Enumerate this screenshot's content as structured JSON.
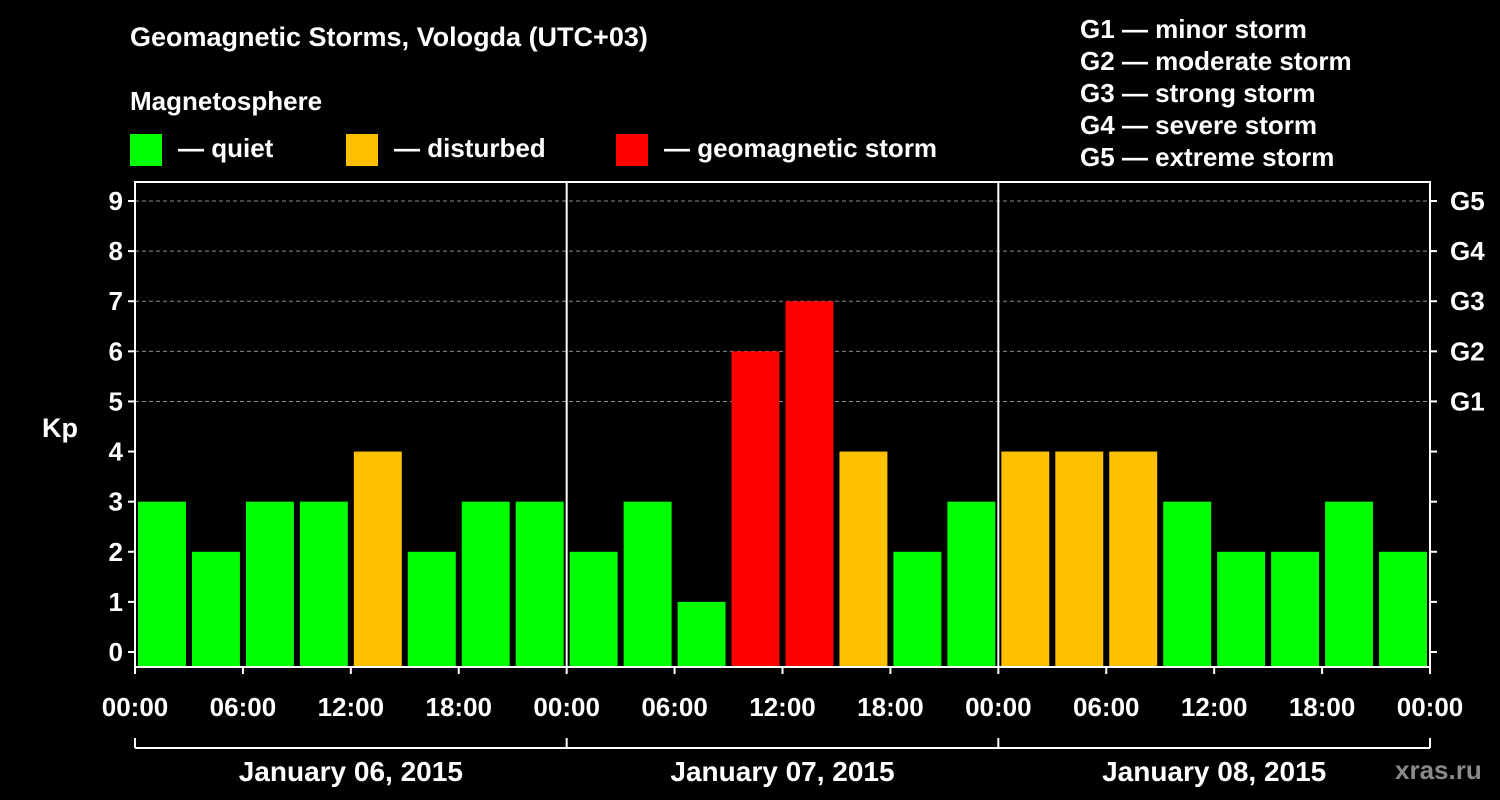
{
  "title": "Geomagnetic Storms, Vologda (UTC+03)",
  "subtitle": "Magnetosphere",
  "legend": [
    {
      "label": "— quiet",
      "color": "#00ff00"
    },
    {
      "label": "— disturbed",
      "color": "#ffc000"
    },
    {
      "label": "— geomagnetic storm",
      "color": "#ff0000"
    }
  ],
  "storm_scale": [
    "G1 — minor storm",
    "G2 — moderate storm",
    "G3 — strong storm",
    "G4 — severe storm",
    "G5 — extreme storm"
  ],
  "watermark": "xras.ru",
  "chart_data": {
    "type": "bar",
    "ylabel": "Kp",
    "ylim": [
      0,
      9
    ],
    "yticks": [
      0,
      1,
      2,
      3,
      4,
      5,
      6,
      7,
      8,
      9
    ],
    "right_ticks": [
      {
        "value": 5,
        "label": "G1"
      },
      {
        "value": 6,
        "label": "G2"
      },
      {
        "value": 7,
        "label": "G3"
      },
      {
        "value": 8,
        "label": "G4"
      },
      {
        "value": 9,
        "label": "G5"
      }
    ],
    "xtick_labels": [
      "00:00",
      "06:00",
      "12:00",
      "18:00",
      "00:00",
      "06:00",
      "12:00",
      "18:00",
      "00:00",
      "06:00",
      "12:00",
      "18:00",
      "00:00"
    ],
    "days": [
      "January 06, 2015",
      "January 07, 2015",
      "January 08, 2015"
    ],
    "bars_per_day": 8,
    "values": [
      3,
      2,
      3,
      3,
      4,
      2,
      3,
      3,
      2,
      3,
      1,
      6,
      7,
      4,
      2,
      3,
      4,
      4,
      4,
      3,
      2,
      2,
      3,
      2
    ],
    "color_levels": {
      "quiet": "#00ff00",
      "disturbed": "#ffc000",
      "storm": "#ff0000"
    },
    "grid_values": [
      5,
      6,
      7,
      8,
      9
    ]
  }
}
